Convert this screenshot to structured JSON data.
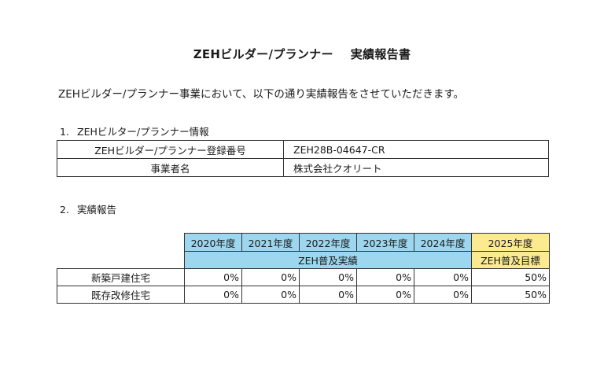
{
  "title_main": "ZEHビルダー/プランナー",
  "title_sub": "実績報告書",
  "intro": "ZEHビルダー/プランナー事業において、以下の通り実績報告をさせていただきます。",
  "section1": {
    "number": "1.",
    "heading": "ZEHビルター/プランナー情報",
    "rows": [
      {
        "label": "ZEHビルダー/プランナー登録番号",
        "value": "ZEH28B-04647-CR"
      },
      {
        "label": "事業者名",
        "value": "株式会社クオリート"
      }
    ]
  },
  "section2": {
    "number": "2.",
    "heading": "実績報告",
    "years": [
      "2020年度",
      "2021年度",
      "2022年度",
      "2023年度",
      "2024年度"
    ],
    "target_year": "2025年度",
    "actual_label": "ZEH普及実績",
    "target_label": "ZEH普及目標",
    "rows": [
      {
        "label": "新築戸建住宅",
        "values": [
          "0%",
          "0%",
          "0%",
          "0%",
          "0%"
        ],
        "target": "50%"
      },
      {
        "label": "既存改修住宅",
        "values": [
          "0%",
          "0%",
          "0%",
          "0%",
          "0%"
        ],
        "target": "50%"
      }
    ],
    "colors": {
      "actual_header": "#9dd7ef",
      "target_header": "#fbea8f"
    }
  }
}
